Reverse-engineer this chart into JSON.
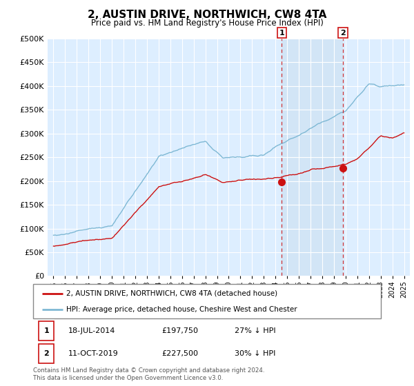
{
  "title": "2, AUSTIN DRIVE, NORTHWICH, CW8 4TA",
  "subtitle": "Price paid vs. HM Land Registry's House Price Index (HPI)",
  "ylim": [
    0,
    500000
  ],
  "yticks": [
    0,
    50000,
    100000,
    150000,
    200000,
    250000,
    300000,
    350000,
    400000,
    450000,
    500000
  ],
  "hpi_color": "#7eb8d4",
  "sale_color": "#cc1111",
  "sale1_label": "18-JUL-2014",
  "sale1_price": "£197,750",
  "sale1_hpi": "27% ↓ HPI",
  "sale2_label": "11-OCT-2019",
  "sale2_price": "£227,500",
  "sale2_hpi": "30% ↓ HPI",
  "legend1": "2, AUSTIN DRIVE, NORTHWICH, CW8 4TA (detached house)",
  "legend2": "HPI: Average price, detached house, Cheshire West and Chester",
  "footnote": "Contains HM Land Registry data © Crown copyright and database right 2024.\nThis data is licensed under the Open Government Licence v3.0.",
  "vline1_year": 2014.54,
  "vline2_year": 2019.78,
  "sale1_y": 197750,
  "sale2_y": 227500,
  "background_color": "#ddeeff",
  "shade_color": "#cce0f0",
  "grid_color": "#cccccc",
  "xlim_left": 1994.5,
  "xlim_right": 2025.5
}
